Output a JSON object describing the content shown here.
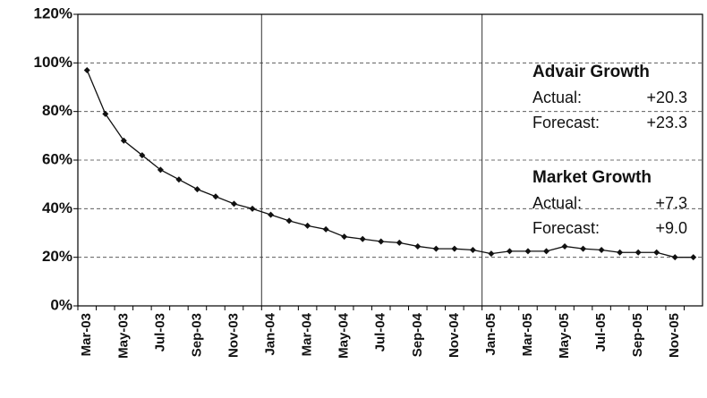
{
  "chart_data": {
    "type": "line",
    "categories": [
      "Mar-03",
      null,
      "May-03",
      null,
      "Jul-03",
      null,
      "Sep-03",
      null,
      "Nov-03",
      null,
      "Jan-04",
      null,
      "Mar-04",
      null,
      "May-04",
      null,
      "Jul-04",
      null,
      "Sep-04",
      null,
      "Nov-04",
      null,
      "Jan-05",
      null,
      "Mar-05",
      null,
      "May-05",
      null,
      "Jul-05",
      null,
      "Sep-05",
      null,
      "Nov-05",
      null
    ],
    "values": [
      97,
      79,
      68,
      62,
      56,
      52,
      48,
      45,
      42,
      40,
      37.5,
      35,
      33,
      31.5,
      28.5,
      27.5,
      26.5,
      26,
      24.5,
      23.5,
      23.5,
      23,
      21.5,
      22.5,
      22.5,
      22.5,
      24.5,
      23.5,
      23,
      22,
      22,
      22,
      20,
      20
    ],
    "color": "#111111",
    "ylim": [
      0,
      120
    ],
    "yticks": [
      {
        "value": 0,
        "label": "0%"
      },
      {
        "value": 20,
        "label": "20%"
      },
      {
        "value": 40,
        "label": "40%"
      },
      {
        "value": 60,
        "label": "60%"
      },
      {
        "value": 80,
        "label": "80%"
      },
      {
        "value": 100,
        "label": "100%"
      },
      {
        "value": 120,
        "label": "120%"
      }
    ],
    "grid": true,
    "annotations": [
      {
        "title": "Advair Growth",
        "rows": [
          {
            "label": "Actual:",
            "value": "+20.3"
          },
          {
            "label": "Forecast:",
            "value": "+23.3"
          }
        ]
      },
      {
        "title": "Market Growth",
        "rows": [
          {
            "label": "Actual:",
            "value": "+7.3"
          },
          {
            "label": "Forecast:",
            "value": "+9.0"
          }
        ]
      }
    ]
  }
}
